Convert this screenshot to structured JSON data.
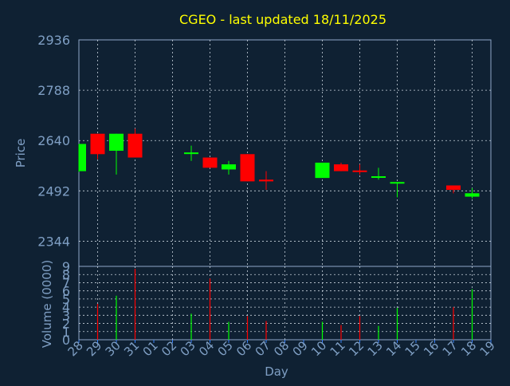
{
  "colors": {
    "background": "#0f2133",
    "frame": "#8fa8c8",
    "grid": "#c8d2dc",
    "title": "#ffff00",
    "axis_text": "#7f9fc4",
    "up": "#00ff00",
    "down": "#ff0000",
    "tick_mark": "#3b82f6"
  },
  "chart_data": {
    "type": "candlestick",
    "title": "CGEO - last updated 18/11/2025",
    "xlabel": "Day",
    "price_panel": {
      "ylabel": "Price",
      "ylim": [
        2270,
        2936
      ],
      "yticks": [
        "2936",
        "2788",
        "2640",
        "2492",
        "2344"
      ],
      "grid": true
    },
    "volume_panel": {
      "ylabel": "Volume (0000)",
      "ylim": [
        0,
        9
      ],
      "yticks": [
        "9",
        "8",
        "7",
        "6",
        "5",
        "4",
        "3",
        "2",
        "1",
        "0"
      ],
      "grid": true
    },
    "x_tick_labels": [
      "28",
      "29",
      "30",
      "31",
      "01",
      "02",
      "03",
      "04",
      "05",
      "06",
      "07",
      "08",
      "09",
      "10",
      "11",
      "12",
      "13",
      "14",
      "15",
      "16",
      "17",
      "18",
      "19"
    ],
    "candles": [
      {
        "x": "28",
        "open": 2550,
        "high": 2630,
        "low": 2548,
        "close": 2630,
        "volume": 0
      },
      {
        "x": "29",
        "open": 2660,
        "high": 2660,
        "low": 2585,
        "close": 2600,
        "volume": 4.4
      },
      {
        "x": "30",
        "open": 2610,
        "high": 2660,
        "low": 2540,
        "close": 2660,
        "volume": 5.4
      },
      {
        "x": "31",
        "open": 2660,
        "high": 2675,
        "low": 2590,
        "close": 2590,
        "volume": 8.7
      },
      {
        "x": "03",
        "open": 2605,
        "high": 2625,
        "low": 2580,
        "close": 2605,
        "volume": 3.2
      },
      {
        "x": "04",
        "open": 2590,
        "high": 2590,
        "low": 2560,
        "close": 2560,
        "volume": 7.5
      },
      {
        "x": "05",
        "open": 2555,
        "high": 2580,
        "low": 2540,
        "close": 2570,
        "volume": 2.2
      },
      {
        "x": "06",
        "open": 2600,
        "high": 2600,
        "low": 2520,
        "close": 2520,
        "volume": 2.9
      },
      {
        "x": "07",
        "open": 2525,
        "high": 2550,
        "low": 2495,
        "close": 2520,
        "volume": 2.3
      },
      {
        "x": "10",
        "open": 2530,
        "high": 2575,
        "low": 2530,
        "close": 2575,
        "volume": 2.2
      },
      {
        "x": "11",
        "open": 2570,
        "high": 2575,
        "low": 2550,
        "close": 2550,
        "volume": 1.8
      },
      {
        "x": "12",
        "open": 2552,
        "high": 2570,
        "low": 2540,
        "close": 2548,
        "volume": 2.9
      },
      {
        "x": "13",
        "open": 2532,
        "high": 2560,
        "low": 2525,
        "close": 2535,
        "volume": 1.7
      },
      {
        "x": "14",
        "open": 2515,
        "high": 2518,
        "low": 2473,
        "close": 2518,
        "volume": 3.9
      },
      {
        "x": "17",
        "open": 2508,
        "high": 2508,
        "low": 2485,
        "close": 2495,
        "volume": 4.0
      },
      {
        "x": "18",
        "open": 2475,
        "high": 2500,
        "low": 2470,
        "close": 2485,
        "volume": 6.2
      }
    ]
  }
}
